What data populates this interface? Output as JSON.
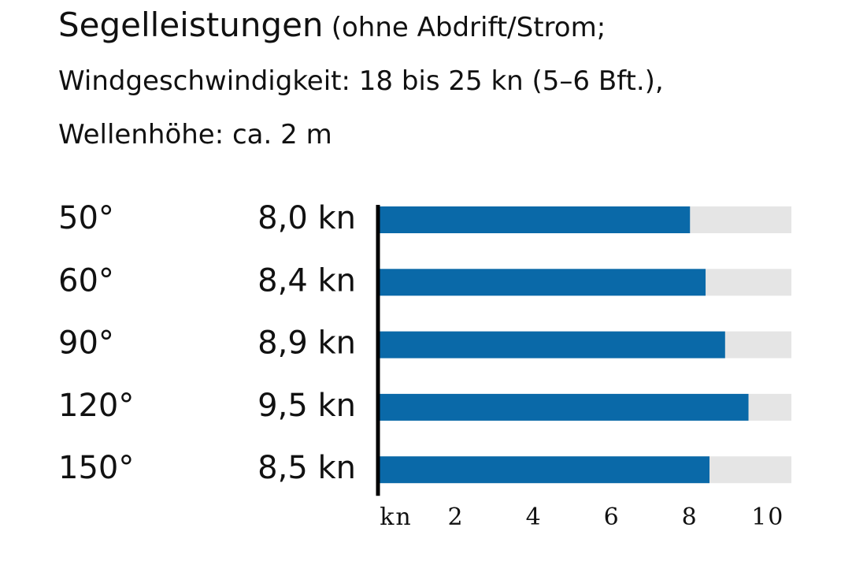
{
  "chart_data": {
    "type": "bar",
    "orientation": "horizontal",
    "title": "Segelleistungen",
    "subtitle": "(ohne Abdrift/Strom; Windgeschwindigkeit: 18 bis 25 kn (5–6 Bft.), Wellenhöhe: ca. 2 m",
    "categories": [
      "50°",
      "60°",
      "90°",
      "120°",
      "150°"
    ],
    "values": [
      8.0,
      8.4,
      8.9,
      9.5,
      8.5
    ],
    "value_labels": [
      "8,0 kn",
      "8,4 kn",
      "8,9 kn",
      "9,5 kn",
      "8,5 kn"
    ],
    "color": "#0a69a8",
    "track_color": "#e5e5e5",
    "x_label": "kn",
    "xlim": [
      0,
      10.6
    ],
    "xticks": [
      2,
      4,
      6,
      8,
      10
    ]
  }
}
